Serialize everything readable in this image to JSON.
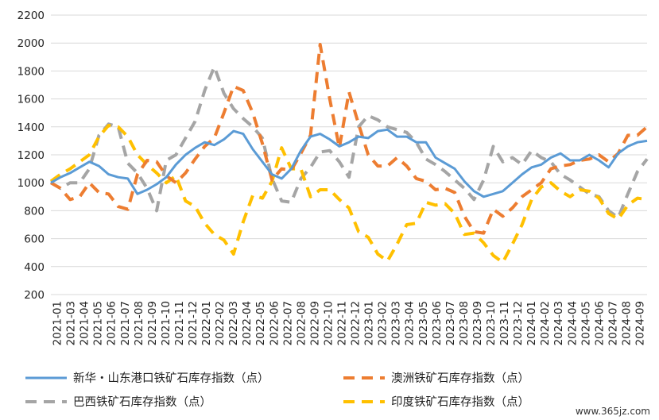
{
  "chart_data": {
    "type": "line",
    "title": "",
    "xlabel": "",
    "ylabel": "",
    "ylim": [
      200,
      2200
    ],
    "yticks": [
      200,
      400,
      600,
      800,
      1000,
      1200,
      1400,
      1600,
      1800,
      2000,
      2200
    ],
    "grid": "horizontal",
    "legend_position": "bottom",
    "x_tick_labels": [
      "2021-01",
      "2021-03",
      "2021-04",
      "2021-05",
      "2021-06",
      "2021-07",
      "2021-08",
      "2021-09",
      "2021-10",
      "2021-11",
      "2021-12",
      "2022-01",
      "2022-02",
      "2022-03",
      "2022-04",
      "2022-05",
      "2022-06",
      "2022-07",
      "2022-08",
      "2022-09",
      "2022-10",
      "2022-11",
      "2022-12",
      "2023-01",
      "2023-02",
      "2023-03",
      "2023-04",
      "2023-05",
      "2023-06",
      "2023-07",
      "2023-08",
      "2023-09",
      "2023-10",
      "2023-11",
      "2023-12",
      "2024-01",
      "2024-02",
      "2024-03",
      "2024-04",
      "2024-05",
      "2024-06",
      "2024-07",
      "2024-08",
      "2024-09"
    ],
    "series": [
      {
        "name": "新华・山东港口铁矿石库存指数（点）",
        "color": "#5b9bd5",
        "style": "solid",
        "values": [
          1000,
          1040,
          1070,
          1110,
          1150,
          1120,
          1060,
          1040,
          1030,
          920,
          950,
          990,
          1040,
          1130,
          1200,
          1250,
          1290,
          1270,
          1310,
          1370,
          1350,
          1240,
          1150,
          1060,
          1030,
          1100,
          1230,
          1330,
          1350,
          1310,
          1260,
          1290,
          1330,
          1320,
          1370,
          1380,
          1330,
          1330,
          1290,
          1290,
          1180,
          1140,
          1100,
          1010,
          940,
          900,
          920,
          940,
          1000,
          1060,
          1110,
          1130,
          1180,
          1210,
          1160,
          1160,
          1200,
          1160,
          1110,
          1210,
          1260,
          1290,
          1300
        ]
      },
      {
        "name": "澳洲铁矿石库存指数（点）",
        "color": "#ed7d31",
        "style": "dashed",
        "values": [
          1000,
          960,
          880,
          900,
          1000,
          930,
          920,
          830,
          810,
          1060,
          1160,
          1150,
          1050,
          1000,
          1070,
          1170,
          1260,
          1320,
          1500,
          1690,
          1660,
          1500,
          1280,
          1020,
          1100,
          1090,
          1210,
          1340,
          1990,
          1600,
          1250,
          1650,
          1420,
          1200,
          1120,
          1120,
          1180,
          1120,
          1030,
          1010,
          950,
          960,
          930,
          760,
          650,
          640,
          810,
          760,
          820,
          900,
          950,
          1000,
          1100,
          1120,
          1130,
          1160,
          1170,
          1200,
          1150,
          1210,
          1340,
          1340,
          1400
        ]
      },
      {
        "name": "巴西铁矿石库存指数（点）",
        "color": "#a5a5a5",
        "style": "dashed",
        "values": [
          1000,
          960,
          1000,
          1000,
          1100,
          1340,
          1420,
          1400,
          1140,
          1070,
          960,
          800,
          1160,
          1200,
          1320,
          1440,
          1660,
          1830,
          1640,
          1530,
          1460,
          1400,
          1320,
          1030,
          870,
          860,
          1030,
          1110,
          1220,
          1230,
          1150,
          1040,
          1400,
          1480,
          1450,
          1400,
          1380,
          1360,
          1290,
          1170,
          1130,
          1080,
          1020,
          960,
          880,
          1020,
          1260,
          1150,
          1180,
          1130,
          1230,
          1180,
          1150,
          1060,
          1020,
          970,
          920,
          900,
          800,
          750,
          920,
          1080,
          1170
        ]
      },
      {
        "name": "印度铁矿石库存指数（点）",
        "color": "#ffc000",
        "style": "dashed",
        "values": [
          1010,
          1060,
          1100,
          1150,
          1200,
          1330,
          1410,
          1400,
          1330,
          1200,
          1130,
          1070,
          1000,
          1050,
          870,
          830,
          710,
          630,
          590,
          490,
          720,
          910,
          890,
          1010,
          1250,
          1100,
          1100,
          900,
          950,
          950,
          880,
          820,
          650,
          610,
          490,
          440,
          560,
          700,
          710,
          860,
          840,
          850,
          780,
          630,
          640,
          570,
          480,
          430,
          560,
          700,
          880,
          970,
          1000,
          940,
          900,
          950,
          940,
          890,
          780,
          740,
          840,
          890,
          880
        ]
      }
    ]
  },
  "watermark": "www.365jz.com"
}
